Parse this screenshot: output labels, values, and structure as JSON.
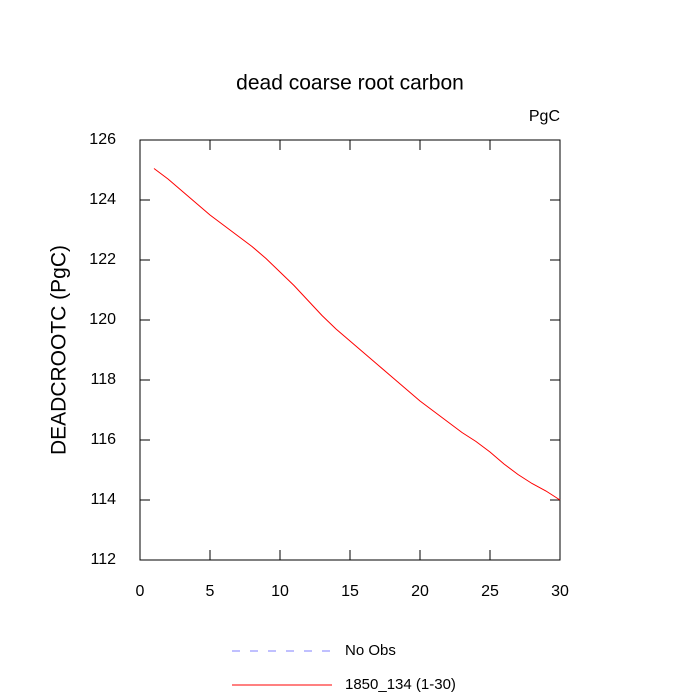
{
  "chart_data": {
    "type": "line",
    "title": "dead coarse root carbon",
    "subtitle": "PgC",
    "y_label": "DEADCROOTC  (PgC)",
    "x": [
      1,
      2,
      3,
      4,
      5,
      6,
      7,
      8,
      9,
      10,
      11,
      12,
      13,
      14,
      15,
      16,
      17,
      18,
      19,
      20,
      21,
      22,
      23,
      24,
      25,
      26,
      27,
      28,
      29,
      30
    ],
    "series": [
      {
        "name": "No Obs",
        "color": "#8080ff",
        "dash": true,
        "values": [
          null,
          null,
          null,
          null,
          null,
          null,
          null,
          null,
          null,
          null,
          null,
          null,
          null,
          null,
          null,
          null,
          null,
          null,
          null,
          null,
          null,
          null,
          null,
          null,
          null,
          null,
          null,
          null,
          null,
          null
        ]
      },
      {
        "name": "1850_134 (1-30)",
        "color": "#ff0000",
        "dash": false,
        "values": [
          125.05,
          124.7,
          124.3,
          123.9,
          123.5,
          123.15,
          122.8,
          122.45,
          122.05,
          121.6,
          121.15,
          120.65,
          120.15,
          119.7,
          119.3,
          118.9,
          118.5,
          118.1,
          117.7,
          117.3,
          116.95,
          116.6,
          116.25,
          115.95,
          115.6,
          115.2,
          114.85,
          114.55,
          114.3,
          114.0
        ]
      }
    ],
    "xlim": [
      0,
      30
    ],
    "xticks": [
      0,
      5,
      10,
      15,
      20,
      25,
      30
    ],
    "ylim": [
      112,
      126
    ],
    "yticks": [
      112,
      114,
      116,
      118,
      120,
      122,
      124,
      126
    ]
  }
}
